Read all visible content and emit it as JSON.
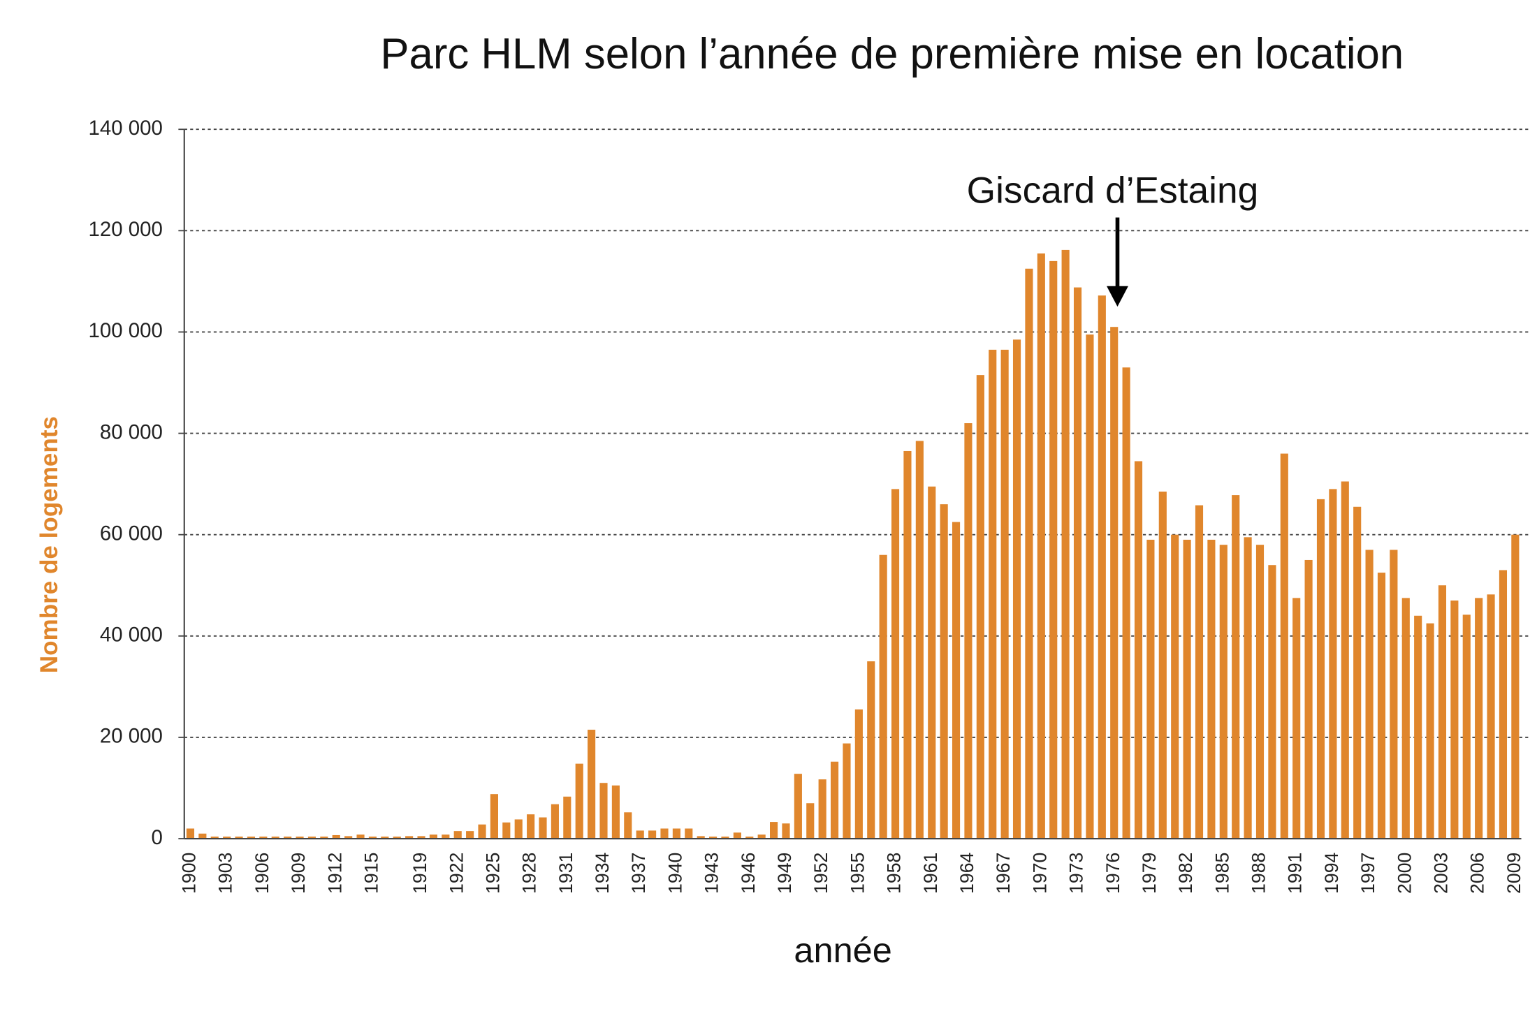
{
  "chart_data": {
    "type": "bar",
    "title": "Parc HLM selon l’année de première mise en location",
    "x_label": "année",
    "y_label": "Nombre de logements",
    "annotation": "Giscard d’Estaing",
    "color": "#e0862c",
    "grid": true,
    "ylim": [
      0,
      140000
    ],
    "yticks": [
      0,
      {
        "value": 20000,
        "label": "20 000"
      },
      {
        "value": 40000,
        "label": "40 000"
      },
      {
        "value": 60000,
        "label": "60 000"
      },
      {
        "value": 80000,
        "label": "80 000"
      },
      {
        "value": 100000,
        "label": "100 000"
      },
      {
        "value": 120000,
        "label": "120 000"
      },
      {
        "value": 140000,
        "label": "140 000"
      }
    ],
    "categories": [
      "1900",
      null,
      null,
      "1903",
      null,
      null,
      "1906",
      null,
      null,
      "1909",
      null,
      null,
      "1912",
      null,
      null,
      "1915",
      null,
      null,
      null,
      "1919",
      null,
      null,
      "1922",
      null,
      null,
      "1925",
      null,
      null,
      "1928",
      null,
      null,
      "1931",
      null,
      null,
      "1934",
      null,
      null,
      "1937",
      null,
      null,
      "1940",
      null,
      null,
      "1943",
      null,
      null,
      "1946",
      null,
      null,
      "1949",
      null,
      null,
      "1952",
      null,
      null,
      "1955",
      null,
      null,
      "1958",
      null,
      null,
      "1961",
      null,
      null,
      "1964",
      null,
      null,
      "1967",
      null,
      null,
      "1970",
      null,
      null,
      "1973",
      null,
      null,
      "1976",
      null,
      null,
      "1979",
      null,
      null,
      "1982",
      null,
      null,
      "1985",
      null,
      null,
      "1988",
      null,
      null,
      "1991",
      null,
      null,
      "1994",
      null,
      null,
      "1997",
      null,
      null,
      "2000",
      null,
      null,
      "2003",
      null,
      null,
      "2006",
      null,
      null,
      "2009"
    ],
    "values": [
      2000,
      1000,
      400,
      400,
      400,
      400,
      400,
      400,
      400,
      400,
      400,
      400,
      700,
      500,
      800,
      400,
      400,
      400,
      500,
      500,
      800,
      800,
      1500,
      1500,
      2800,
      8800,
      3200,
      3800,
      4800,
      4200,
      6800,
      8300,
      14800,
      21500,
      11000,
      10500,
      5200,
      1600,
      1600,
      2000,
      2000,
      2000,
      500,
      400,
      400,
      1200,
      400,
      800,
      3300,
      3000,
      12800,
      7000,
      11700,
      15200,
      18800,
      25500,
      35000,
      56000,
      69000,
      76500,
      78500,
      69500,
      66000,
      62500,
      82000,
      91500,
      96500,
      96500,
      98500,
      112500,
      115500,
      114000,
      116200,
      108800,
      99500,
      107200,
      101000,
      93000,
      74500,
      59000,
      68500,
      60000,
      59000,
      65800,
      59000,
      58000,
      67800,
      59500,
      58000,
      54000,
      76000,
      47500,
      55000,
      67000,
      69000,
      70500,
      65500,
      57000,
      52500,
      57000,
      47500,
      44000,
      42500,
      50000,
      47000,
      44200,
      47500,
      48200,
      53000,
      60000
    ]
  }
}
